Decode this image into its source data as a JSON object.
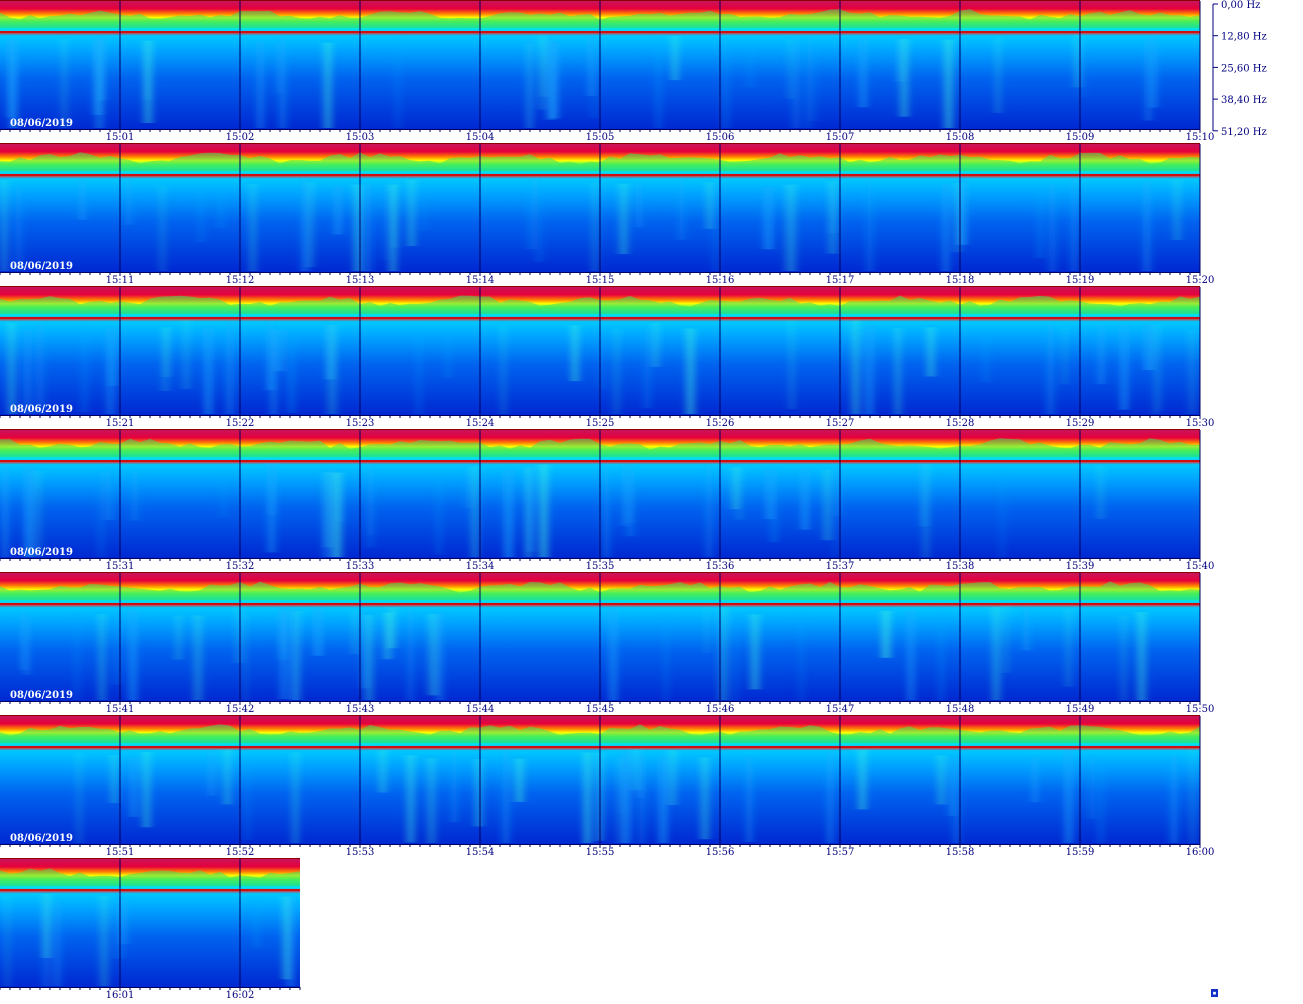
{
  "chart_data": {
    "type": "heatmap",
    "title": "",
    "date": "08/06/2019",
    "y_axis": {
      "unit": "Hz",
      "tick_labels": [
        "0,00 Hz",
        "12,80 Hz",
        "25,60 Hz",
        "38,40 Hz",
        "51,20 Hz"
      ],
      "range": [
        0,
        51.2
      ]
    },
    "x_axis": {
      "unit": "time (HH:MM)",
      "minutes_per_row": 10
    },
    "colormap": [
      "#0014c8",
      "#0050f0",
      "#00a0ff",
      "#00e6e6",
      "#50ff50",
      "#ffff00",
      "#ff8000",
      "#e6003c",
      "#c8145a"
    ],
    "rows": [
      {
        "date_label": "08/06/2019",
        "time_labels": [
          "15:01",
          "15:02",
          "15:03",
          "15:04",
          "15:05",
          "15:06",
          "15:07",
          "15:08",
          "15:09",
          "15:10"
        ]
      },
      {
        "date_label": "08/06/2019",
        "time_labels": [
          "15:11",
          "15:12",
          "15:13",
          "15:14",
          "15:15",
          "15:16",
          "15:17",
          "15:18",
          "15:19",
          "15:20"
        ]
      },
      {
        "date_label": "08/06/2019",
        "time_labels": [
          "15:21",
          "15:22",
          "15:23",
          "15:24",
          "15:25",
          "15:26",
          "15:27",
          "15:28",
          "15:29",
          "15:30"
        ]
      },
      {
        "date_label": "08/06/2019",
        "time_labels": [
          "15:31",
          "15:32",
          "15:33",
          "15:34",
          "15:35",
          "15:36",
          "15:37",
          "15:38",
          "15:39",
          "15:40"
        ]
      },
      {
        "date_label": "08/06/2019",
        "time_labels": [
          "15:41",
          "15:42",
          "15:43",
          "15:44",
          "15:45",
          "15:46",
          "15:47",
          "15:48",
          "15:49",
          "15:50"
        ]
      },
      {
        "date_label": "08/06/2019",
        "time_labels": [
          "15:51",
          "15:52",
          "15:53",
          "15:54",
          "15:55",
          "15:56",
          "15:57",
          "15:58",
          "15:59",
          "16:00"
        ]
      },
      {
        "date_label": "",
        "time_labels": [
          "16:01",
          "16:02"
        ]
      }
    ],
    "last_row_minutes": 2.5
  }
}
